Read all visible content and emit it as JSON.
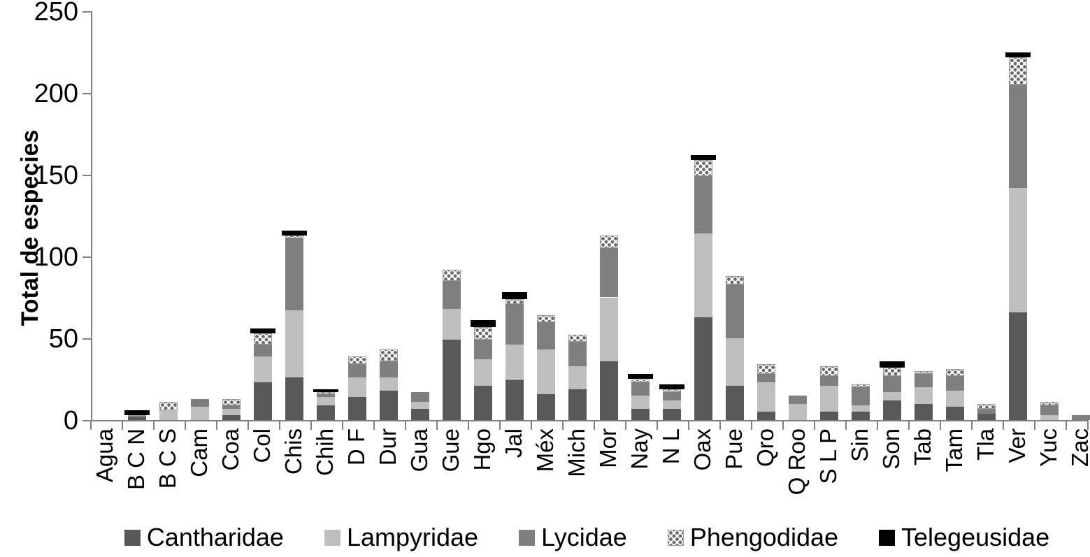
{
  "chart_data": {
    "type": "bar",
    "stacked": true,
    "title": "",
    "ylabel": "Total de especies",
    "xlabel": "",
    "ylim": [
      0,
      250
    ],
    "yticks": [
      0,
      50,
      100,
      150,
      200,
      250
    ],
    "grid": false,
    "legend_position": "bottom",
    "categories": [
      "Agua",
      "B C N",
      "B C S",
      "Cam",
      "Coa",
      "Col",
      "Chis",
      "Chih",
      "D F",
      "Dur",
      "Gua",
      "Gue",
      "Hgo",
      "Jal",
      "Méx",
      "Mich",
      "Mor",
      "Nay",
      "N L",
      "Oax",
      "Pue",
      "Qro",
      "Q Roo",
      "S L P",
      "Sin",
      "Son",
      "Tab",
      "Tam",
      "Tla",
      "Ver",
      "Yuc",
      "Zac"
    ],
    "series": [
      {
        "name": "Cantharidae",
        "color": "#595959",
        "pattern": "solid",
        "values": [
          0,
          2,
          0,
          0,
          3,
          23,
          26,
          9,
          14,
          18,
          7,
          49,
          21,
          25,
          16,
          19,
          36,
          7,
          7,
          63,
          21,
          5,
          0,
          5,
          5,
          12,
          10,
          8,
          4,
          66,
          0,
          0
        ]
      },
      {
        "name": "Lampyridae",
        "color": "#bfbfbf",
        "pattern": "solid",
        "values": [
          0,
          0,
          6,
          8,
          4,
          16,
          41,
          5,
          12,
          8,
          4,
          19,
          16,
          21,
          27,
          14,
          39,
          8,
          5,
          51,
          29,
          18,
          10,
          16,
          4,
          5,
          10,
          10,
          0,
          76,
          3,
          0
        ]
      },
      {
        "name": "Lycidae",
        "color": "#7f7f7f",
        "pattern": "solid",
        "values": [
          0,
          0,
          0,
          5,
          2,
          7,
          44,
          2,
          8,
          10,
          6,
          17,
          12,
          25,
          17,
          15,
          30,
          8,
          5,
          35,
          33,
          5,
          5,
          6,
          11,
          10,
          8,
          9,
          3,
          63,
          6,
          3
        ]
      },
      {
        "name": "Phengodidae",
        "color": "#6b6b6b",
        "pattern": "dotted",
        "values": [
          0,
          1,
          5,
          0,
          4,
          7,
          2,
          1,
          5,
          7,
          0,
          7,
          8,
          3,
          4,
          4,
          8,
          2,
          2,
          10,
          5,
          6,
          0,
          6,
          2,
          5,
          2,
          4,
          3,
          17,
          2,
          0
        ]
      },
      {
        "name": "Telegeusidae",
        "color": "#000000",
        "pattern": "solid",
        "cap_overhang": true,
        "values": [
          0,
          3,
          0,
          0,
          0,
          3,
          3,
          2,
          0,
          0,
          0,
          0,
          4,
          4,
          0,
          0,
          0,
          3,
          3,
          3,
          0,
          0,
          0,
          0,
          0,
          4,
          0,
          0,
          0,
          3,
          0,
          0
        ]
      }
    ]
  },
  "axis_color": "#808080"
}
